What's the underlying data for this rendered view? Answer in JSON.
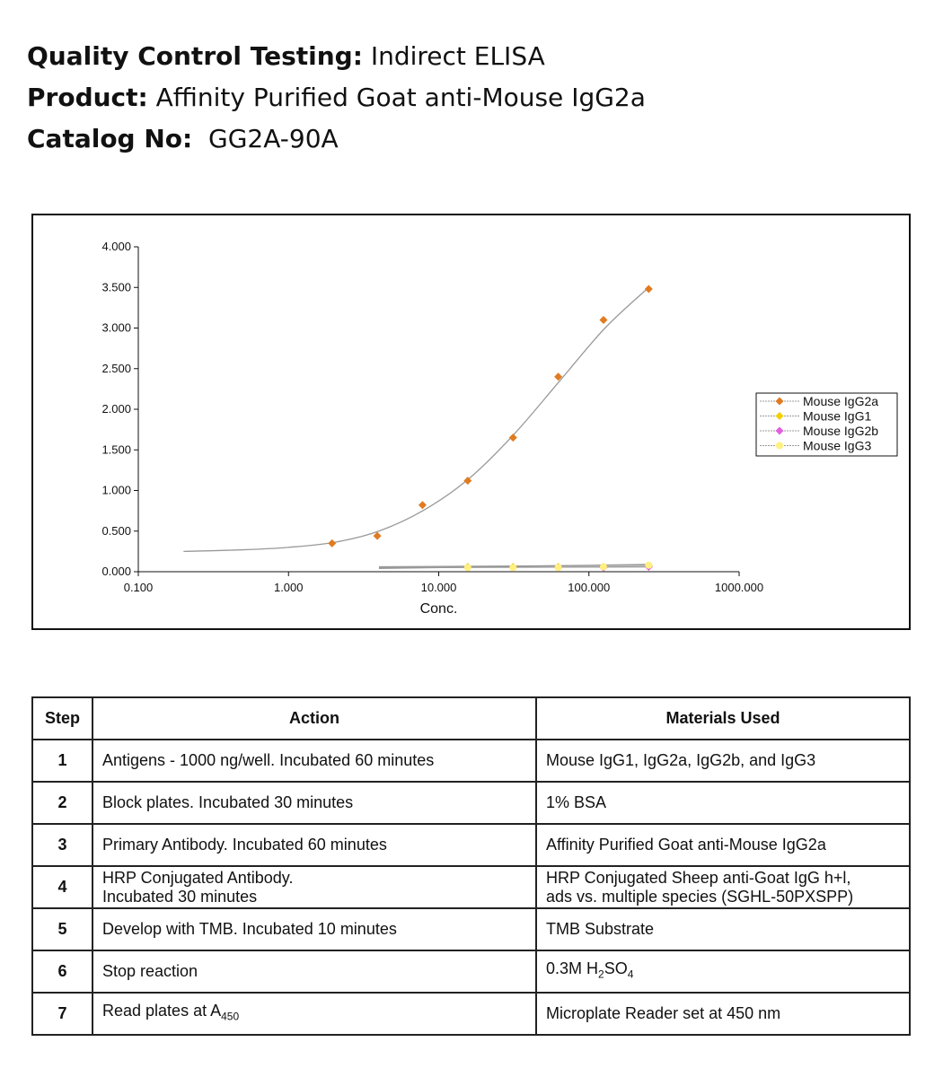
{
  "header": {
    "line1": {
      "label": "Quality Control Testing:",
      "value": "Indirect ELISA"
    },
    "line2": {
      "label": "Product:",
      "value": "Affinity Purified Goat anti-Mouse IgG2a"
    },
    "line3": {
      "label": "Catalog No:",
      "value": "GG2A-90A"
    }
  },
  "chart_data": {
    "type": "scatter",
    "xlabel": "Conc.",
    "ylabel": "",
    "x_scale": "log",
    "xlim": [
      0.1,
      1000
    ],
    "ylim": [
      0,
      4
    ],
    "x_tick_labels": [
      "0.100",
      "1.000",
      "10.000",
      "100.000",
      "1000.000"
    ],
    "x_tick_values": [
      0.1,
      1,
      10,
      100,
      1000
    ],
    "y_tick_labels": [
      "0.000",
      "0.500",
      "1.000",
      "1.500",
      "2.000",
      "2.500",
      "3.000",
      "3.500",
      "4.000"
    ],
    "y_tick_values": [
      0,
      0.5,
      1,
      1.5,
      2,
      2.5,
      3,
      3.5,
      4
    ],
    "legend_position": "right",
    "grid": false,
    "series": [
      {
        "name": "Mouse IgG2a",
        "color": "#E07B20",
        "marker": "diamond",
        "x": [
          1.95,
          3.9,
          7.8,
          15.6,
          31.25,
          62.5,
          125,
          250
        ],
        "y": [
          0.35,
          0.44,
          0.82,
          1.12,
          1.65,
          2.4,
          3.1,
          3.48
        ],
        "fit": {
          "x": [
            0.2,
            0.5,
            1,
            2,
            4,
            8,
            16,
            32,
            64,
            128,
            250
          ],
          "y": [
            0.25,
            0.27,
            0.3,
            0.36,
            0.5,
            0.76,
            1.15,
            1.7,
            2.35,
            3.0,
            3.5
          ]
        }
      },
      {
        "name": "Mouse IgG1",
        "color": "#F2D000",
        "marker": "diamond",
        "x": [
          15.6,
          31.25,
          62.5,
          125,
          250
        ],
        "y": [
          0.06,
          0.06,
          0.06,
          0.06,
          0.07
        ],
        "fit": {
          "x": [
            4,
            250
          ],
          "y": [
            0.06,
            0.08
          ]
        }
      },
      {
        "name": "Mouse IgG2b",
        "color": "#E060E0",
        "marker": "diamond",
        "x": [
          15.6,
          31.25,
          62.5,
          125,
          250
        ],
        "y": [
          0.05,
          0.05,
          0.05,
          0.05,
          0.06
        ],
        "fit": {
          "x": [
            4,
            250
          ],
          "y": [
            0.05,
            0.06
          ]
        }
      },
      {
        "name": "Mouse IgG3",
        "color": "#FFF080",
        "marker": "circle",
        "x": [
          15.6,
          31.25,
          62.5,
          125,
          250
        ],
        "y": [
          0.05,
          0.05,
          0.05,
          0.06,
          0.08
        ],
        "fit": {
          "x": [
            4,
            250
          ],
          "y": [
            0.04,
            0.09
          ]
        }
      }
    ]
  },
  "table": {
    "headers": {
      "step": "Step",
      "action": "Action",
      "materials": "Materials Used"
    },
    "rows": [
      {
        "step": "1",
        "action": "Antigens - 1000 ng/well. Incubated 60 minutes",
        "materials": "Mouse IgG1, IgG2a, IgG2b, and IgG3"
      },
      {
        "step": "2",
        "action": "Block plates. Incubated 30 minutes",
        "materials": "1% BSA"
      },
      {
        "step": "3",
        "action": "Primary Antibody.  Incubated 60 minutes",
        "materials": "Affinity Purified Goat anti-Mouse IgG2a"
      },
      {
        "step": "4",
        "action": "HRP Conjugated Antibody.\nIncubated 30 minutes",
        "materials": "HRP Conjugated Sheep anti-Goat IgG h+l,\nads vs. multiple species (SGHL-50PXSPP)"
      },
      {
        "step": "5",
        "action": "Develop with TMB. Incubated 10 minutes",
        "materials": "TMB Substrate"
      },
      {
        "step": "6",
        "action": "Stop reaction",
        "materials_main": "0.3M H",
        "materials_sub1": "2",
        "materials_mid": "SO",
        "materials_sub2": "4"
      },
      {
        "step": "7",
        "action_main": "Read plates at A",
        "action_sub": "450",
        "materials": "Microplate Reader set at 450 nm"
      }
    ]
  }
}
